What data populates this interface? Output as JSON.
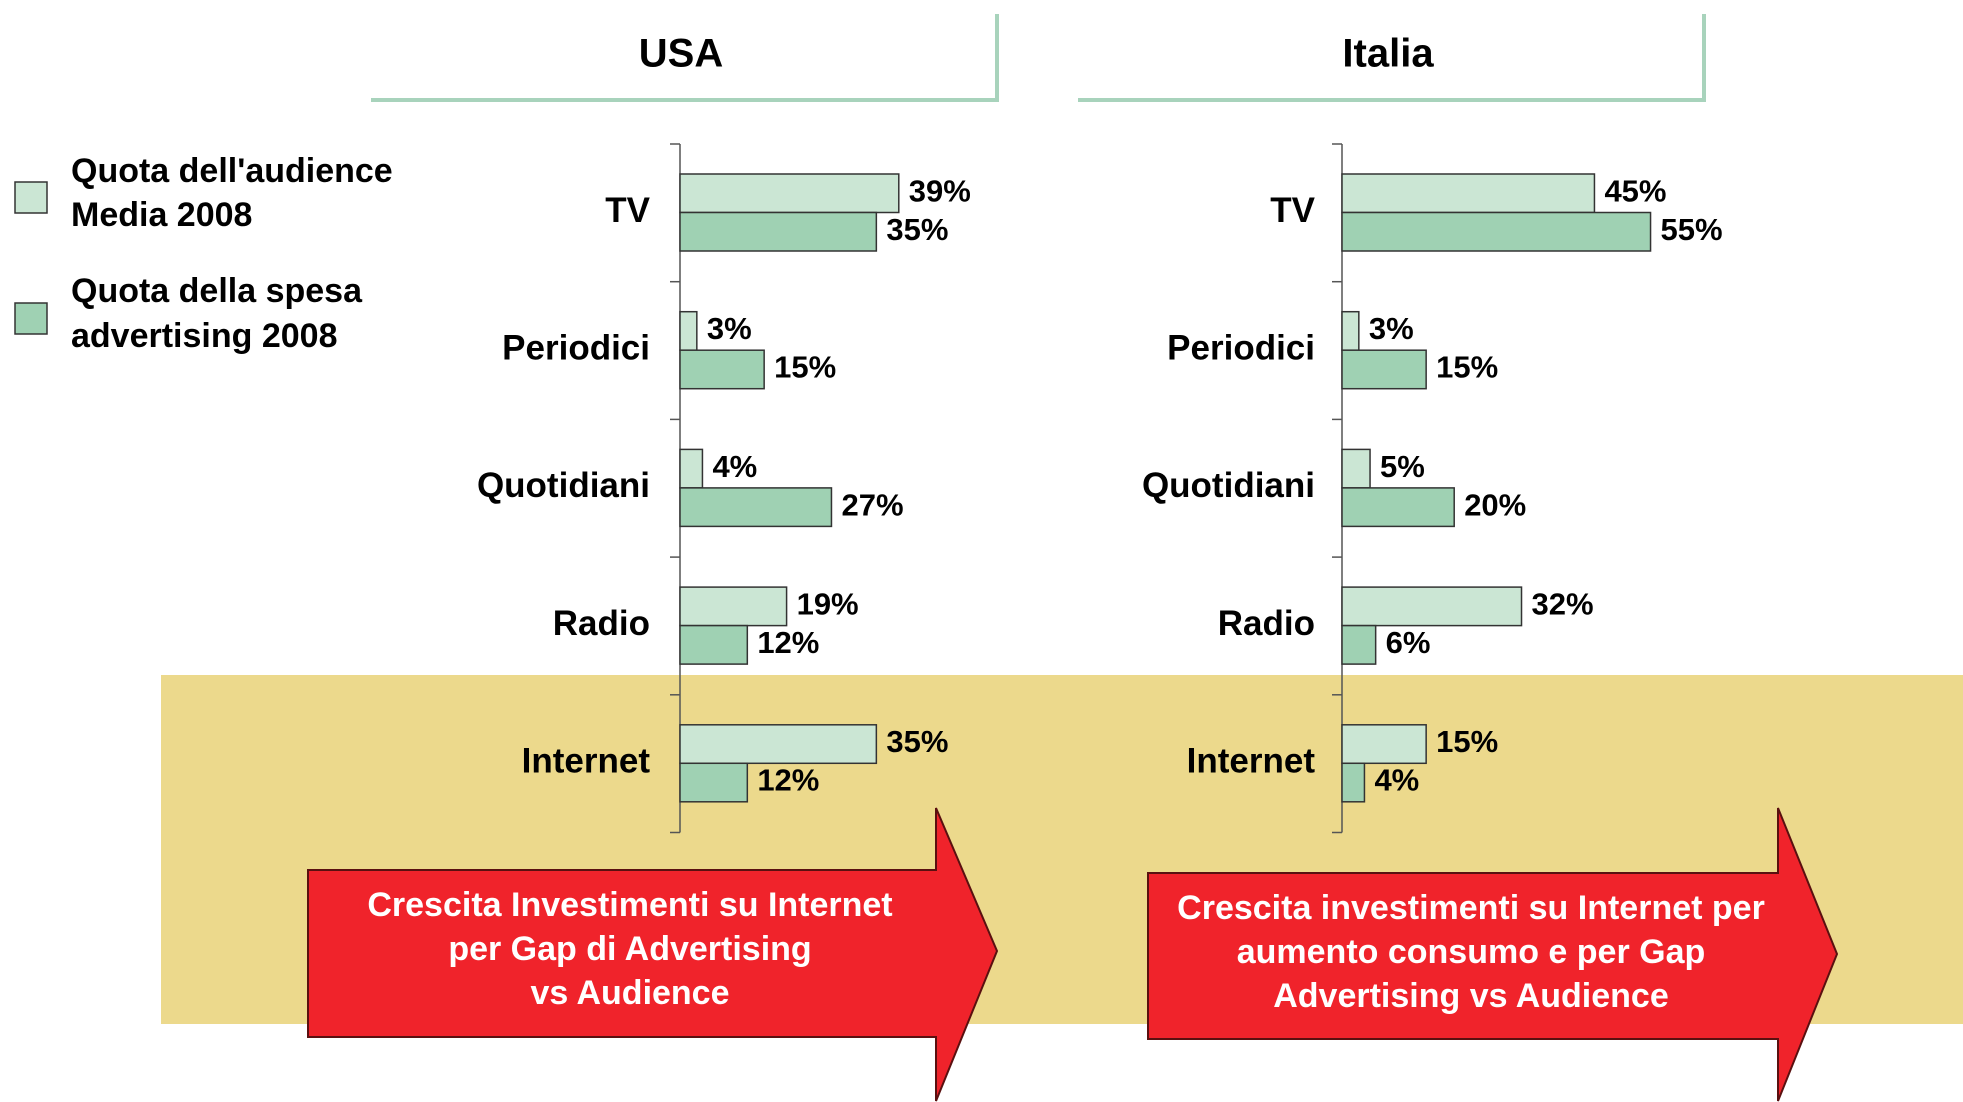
{
  "legend": [
    {
      "name": [
        "Quota dell'audience",
        "Media 2008"
      ],
      "color": "#cbe6d4"
    },
    {
      "name": [
        "Quota della spesa",
        "advertising 2008"
      ],
      "color": "#9fd1b3"
    }
  ],
  "chart_data": [
    {
      "type": "bar",
      "title": "USA",
      "categories": [
        "TV",
        "Periodici",
        "Quotidiani",
        "Radio",
        "Internet"
      ],
      "xlim": [
        0,
        100
      ],
      "series": [
        {
          "values": [
            39,
            3,
            4,
            19,
            35
          ],
          "value_labels": [
            "39%",
            "3%",
            "4%",
            "19%",
            "35%"
          ]
        },
        {
          "values": [
            35,
            15,
            27,
            12,
            12
          ],
          "value_labels": [
            "35%",
            "15%",
            "27%",
            "12%",
            "12%"
          ]
        }
      ],
      "annotation": [
        "Crescita Investimenti su Internet",
        "per Gap di Advertising",
        "vs Audience"
      ]
    },
    {
      "type": "bar",
      "title": "Italia",
      "categories": [
        "TV",
        "Periodici",
        "Quotidiani",
        "Radio",
        "Internet"
      ],
      "xlim": [
        0,
        100
      ],
      "series": [
        {
          "values": [
            45,
            3,
            5,
            32,
            15
          ],
          "value_labels": [
            "45%",
            "3%",
            "5%",
            "32%",
            "15%"
          ]
        },
        {
          "values": [
            55,
            15,
            20,
            6,
            4
          ],
          "value_labels": [
            "55%",
            "15%",
            "20%",
            "6%",
            "4%"
          ]
        }
      ],
      "annotation": [
        "Crescita investimenti su Internet per",
        "aumento consumo e per Gap",
        "Advertising vs Audience"
      ]
    }
  ]
}
